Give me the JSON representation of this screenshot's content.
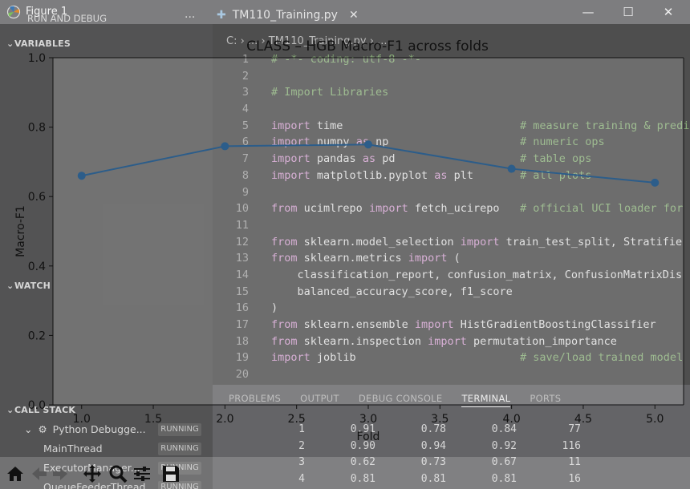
{
  "window": {
    "title": "Figure 1",
    "minimize": "—",
    "maximize": "☐",
    "close": "✕"
  },
  "background": {
    "sidebar": {
      "header": "RUN AND DEBUG",
      "more": "···",
      "variables": "VARIABLES",
      "watch": "WATCH",
      "call_stack": "CALL STACK",
      "call_stack_items": [
        {
          "label": "Python Debugge...",
          "status": "RUNNING"
        },
        {
          "label": "MainThread",
          "status": "RUNNING"
        },
        {
          "label": "ExecutorManager...",
          "status": "RUNNING"
        },
        {
          "label": "QueueFeederThread",
          "status": "RUNNING"
        }
      ]
    },
    "editor": {
      "tab_label": "TM110_Training.py",
      "tab_close": "✕",
      "breadcrumb": "C: › ... › TM110_Training.py › ...",
      "lines": [
        {
          "n": "1",
          "code": "# -*- coding: utf-8 -*-",
          "comment": ""
        },
        {
          "n": "2",
          "code": "",
          "comment": ""
        },
        {
          "n": "3",
          "code": "# Import Libraries",
          "comment": ""
        },
        {
          "n": "4",
          "code": "",
          "comment": ""
        },
        {
          "n": "5",
          "code": "import time",
          "comment": "# measure training & predi"
        },
        {
          "n": "6",
          "code": "import numpy as np",
          "comment": "# numeric ops"
        },
        {
          "n": "7",
          "code": "import pandas as pd",
          "comment": "# table ops"
        },
        {
          "n": "8",
          "code": "import matplotlib.pyplot as plt",
          "comment": "# all plots"
        },
        {
          "n": "9",
          "code": "",
          "comment": ""
        },
        {
          "n": "10",
          "code": "from ucimlrepo import fetch_ucirepo",
          "comment": "# official UCI loader for"
        },
        {
          "n": "11",
          "code": "",
          "comment": ""
        },
        {
          "n": "12",
          "code": "from sklearn.model_selection import train_test_split, Stratifie",
          "comment": ""
        },
        {
          "n": "13",
          "code": "from sklearn.metrics import (",
          "comment": ""
        },
        {
          "n": "14",
          "code": "    classification_report, confusion_matrix, ConfusionMatrixDis",
          "comment": ""
        },
        {
          "n": "15",
          "code": "    balanced_accuracy_score, f1_score",
          "comment": ""
        },
        {
          "n": "16",
          "code": ")",
          "comment": ""
        },
        {
          "n": "17",
          "code": "from sklearn.ensemble import HistGradientBoostingClassifier",
          "comment": ""
        },
        {
          "n": "18",
          "code": "from sklearn.inspection import permutation_importance",
          "comment": ""
        },
        {
          "n": "19",
          "code": "import joblib",
          "comment": "# save/load trained model"
        },
        {
          "n": "20",
          "code": "",
          "comment": ""
        }
      ]
    },
    "panel": {
      "tabs": [
        "PROBLEMS",
        "OUTPUT",
        "DEBUG CONSOLE",
        "TERMINAL",
        "PORTS"
      ],
      "active_tab": "TERMINAL",
      "rows": [
        [
          "1",
          "0.91",
          "0.78",
          "0.84",
          "77"
        ],
        [
          "2",
          "0.90",
          "0.94",
          "0.92",
          "116"
        ],
        [
          "3",
          "0.62",
          "0.73",
          "0.67",
          "11"
        ],
        [
          "4",
          "0.81",
          "0.81",
          "0.81",
          "16"
        ]
      ]
    }
  },
  "chart_data": {
    "type": "line",
    "title": "CLASS – HGB Macro-F1 across folds",
    "xlabel": "Fold",
    "ylabel": "Macro-F1",
    "x": [
      1,
      2,
      3,
      4,
      5
    ],
    "y": [
      0.66,
      0.745,
      0.75,
      0.68,
      0.64
    ],
    "xlim": [
      0.8,
      5.2
    ],
    "ylim": [
      0.0,
      1.0
    ],
    "xticks": [
      "1.0",
      "1.5",
      "2.0",
      "2.5",
      "3.0",
      "3.5",
      "4.0",
      "4.5",
      "5.0"
    ],
    "yticks": [
      "0.0",
      "0.2",
      "0.4",
      "0.6",
      "0.8",
      "1.0"
    ],
    "line_color": "#2c5d8a",
    "marker": "circle",
    "grid": false
  },
  "toolbar": {
    "tools": [
      "home-icon",
      "back-icon",
      "forward-icon",
      "pan-icon",
      "zoom-icon",
      "configure-subplots-icon",
      "save-icon"
    ]
  }
}
